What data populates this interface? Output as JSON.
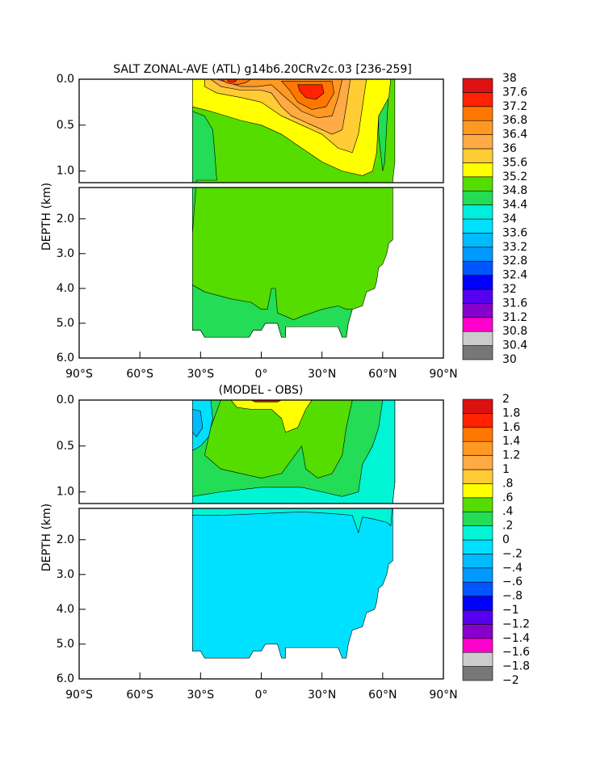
{
  "chart_data": [
    {
      "type": "contour",
      "title": "SALT ZONAL-AVE (ATL) g14b6.20CRv2c.03 [236-259]",
      "y_label": "DEPTH (km)",
      "xlim": [
        -90,
        90
      ],
      "xticks": [
        {
          "value": -90,
          "label": "90°S"
        },
        {
          "value": -60,
          "label": "60°S"
        },
        {
          "value": -30,
          "label": "30°S"
        },
        {
          "value": 0,
          "label": "0°"
        },
        {
          "value": 30,
          "label": "30°N"
        },
        {
          "value": 60,
          "label": "60°N"
        },
        {
          "value": 90,
          "label": "90°N"
        }
      ],
      "ylim": [
        0,
        6
      ],
      "yticks": [
        {
          "value": 0,
          "label": "0.0"
        },
        0.5,
        {
          "value": 1,
          "label": "1.0"
        },
        {
          "value": 2,
          "label": "2.0"
        },
        {
          "value": 3,
          "label": "3.0"
        },
        {
          "value": 4,
          "label": "4.0"
        },
        {
          "value": 5,
          "label": "5.0"
        },
        {
          "value": 6,
          "label": "6.0"
        }
      ],
      "levels": [
        30,
        30.4,
        30.8,
        31.2,
        31.6,
        32,
        32.4,
        32.8,
        33.2,
        33.6,
        34,
        34.4,
        34.8,
        35.2,
        35.6,
        36,
        36.4,
        36.8,
        37.2,
        37.6,
        38
      ],
      "colors": [
        "#777777",
        "#cccccc",
        "#ff00cc",
        "#8800cc",
        "#5500ee",
        "#0000ff",
        "#0055ff",
        "#0099ff",
        "#00bbff",
        "#00e0ff",
        "#00eedd",
        "#22dd55",
        "#55dd00",
        "#ffff00",
        "#ffcc33",
        "#ffaa44",
        "#ff9922",
        "#ff7700",
        "#ff2200",
        "#dd1111"
      ]
    },
    {
      "type": "contour",
      "title": "(MODEL - OBS)",
      "y_label": "DEPTH (km)",
      "xlim": [
        -90,
        90
      ],
      "xticks": [
        {
          "value": -90,
          "label": "90°S"
        },
        {
          "value": -60,
          "label": "60°S"
        },
        {
          "value": -30,
          "label": "30°S"
        },
        {
          "value": 0,
          "label": "0°"
        },
        {
          "value": 30,
          "label": "30°N"
        },
        {
          "value": 60,
          "label": "60°N"
        },
        {
          "value": 90,
          "label": "90°N"
        }
      ],
      "ylim": [
        0,
        6
      ],
      "yticks": [
        {
          "value": 0,
          "label": "0.0"
        },
        0.5,
        {
          "value": 1,
          "label": "1.0"
        },
        {
          "value": 2,
          "label": "2.0"
        },
        {
          "value": 3,
          "label": "3.0"
        },
        {
          "value": 4,
          "label": "4.0"
        },
        {
          "value": 5,
          "label": "5.0"
        },
        {
          "value": 6,
          "label": "6.0"
        }
      ],
      "levels": [
        {
          "value": -2,
          "label": "−2"
        },
        {
          "value": -1.8,
          "label": "−1.8"
        },
        {
          "value": -1.6,
          "label": "−1.6"
        },
        {
          "value": -1.4,
          "label": "−1.4"
        },
        {
          "value": -1.2,
          "label": "−1.2"
        },
        {
          "value": -1,
          "label": "−1"
        },
        {
          "value": -0.8,
          "label": "−.8"
        },
        {
          "value": -0.6,
          "label": "−.6"
        },
        {
          "value": -0.4,
          "label": "−.4"
        },
        {
          "value": -0.2,
          "label": "−.2"
        },
        0,
        {
          "value": 0.2,
          "label": ".2"
        },
        {
          "value": 0.4,
          "label": ".4"
        },
        {
          "value": 0.6,
          "label": ".6"
        },
        {
          "value": 0.8,
          "label": ".8"
        },
        1,
        1.2,
        1.4,
        1.6,
        1.8,
        2
      ],
      "colors": [
        "#777777",
        "#cccccc",
        "#ff00cc",
        "#8800cc",
        "#5500ee",
        "#0000ff",
        "#0055ff",
        "#0099ff",
        "#00bbff",
        "#00e0ff",
        "#00f5d5",
        "#22dd55",
        "#55dd00",
        "#ffff00",
        "#ffcc33",
        "#ffaa44",
        "#ff9922",
        "#ff7700",
        "#ff2200",
        "#dd1111"
      ]
    }
  ]
}
